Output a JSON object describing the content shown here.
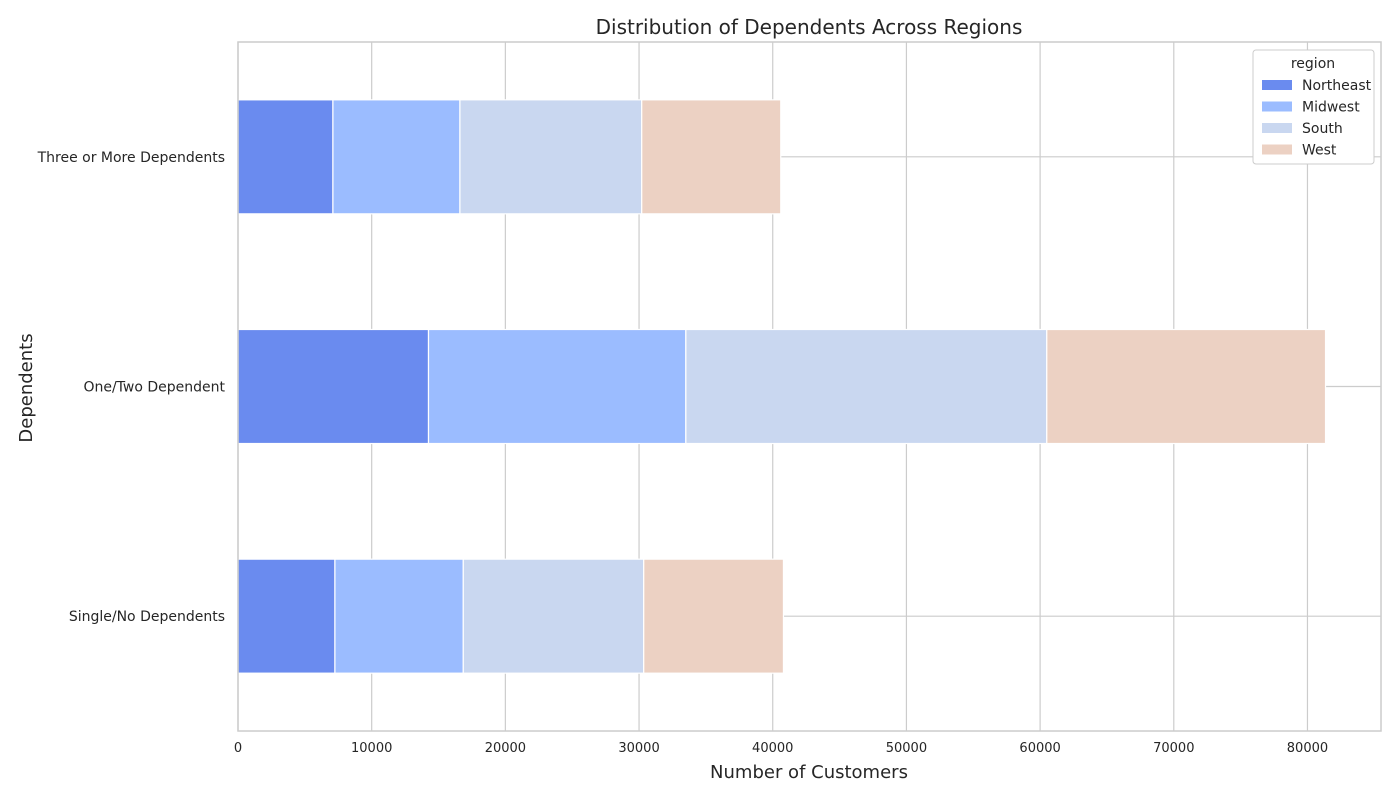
{
  "chart_data": {
    "type": "bar",
    "orientation": "horizontal",
    "stacked": true,
    "title": "Distribution of Dependents Across Regions",
    "xlabel": "Number of Customers",
    "ylabel": "Dependents",
    "xlim": [
      0,
      85500
    ],
    "xticks": [
      0,
      10000,
      20000,
      30000,
      40000,
      50000,
      60000,
      70000,
      80000
    ],
    "categories": [
      "Single/No Dependents",
      "One/Two Dependent",
      "Three or More Dependents"
    ],
    "series": [
      {
        "name": "Northeast",
        "color": "#6a8bef",
        "values": [
          7250,
          14250,
          7100
        ]
      },
      {
        "name": "Midwest",
        "color": "#9bbcff",
        "values": [
          9600,
          19250,
          9500
        ]
      },
      {
        "name": "South",
        "color": "#c9d7f0",
        "values": [
          13500,
          27000,
          13600
        ]
      },
      {
        "name": "West",
        "color": "#ecd1c3",
        "values": [
          10450,
          20850,
          10400
        ]
      }
    ],
    "legend": {
      "title": "region",
      "position": "top-right"
    },
    "grid": true
  }
}
